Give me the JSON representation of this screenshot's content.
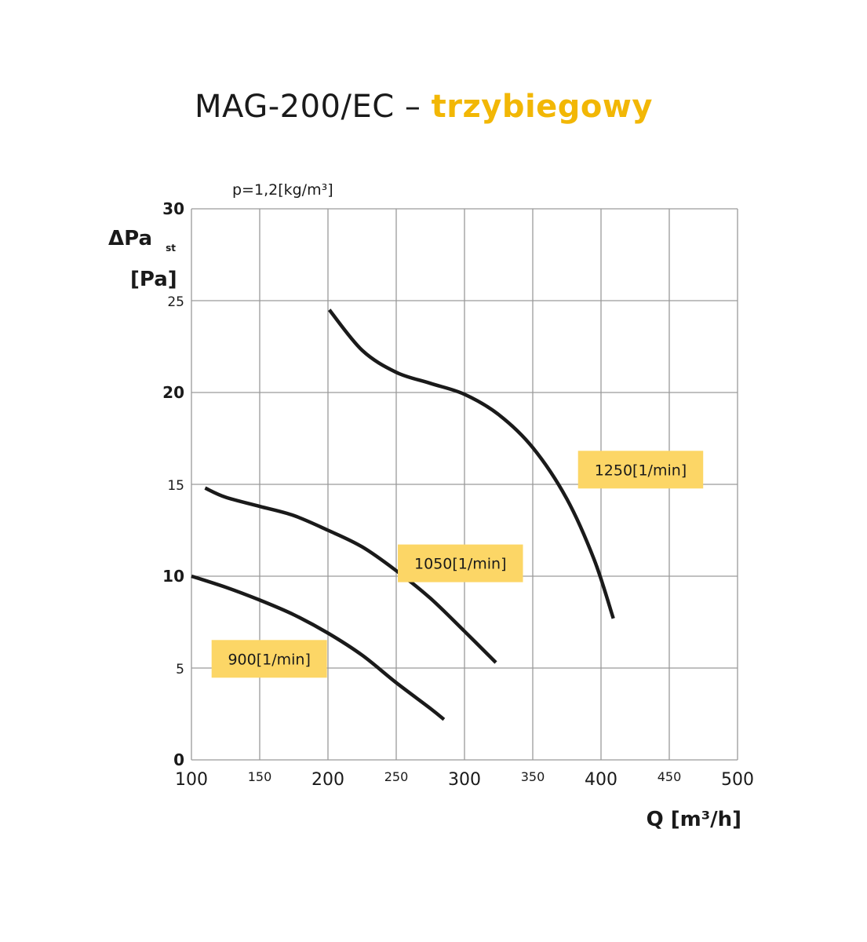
{
  "title": {
    "model": "MAG-200/EC",
    "separator": "–",
    "variant": "trzybiegowy"
  },
  "colors": {
    "accent": "#f2b705",
    "label_box": "#fcd666",
    "curve": "#1a1a1a",
    "grid": "#9a9a9a"
  },
  "chart_data": {
    "type": "line",
    "density_note": "p=1,2[kg/m³]",
    "ylabel": "ΔPa",
    "ylabel_sub": "st",
    "yunit": "[Pa]",
    "xlabel": "Q [m³/h]",
    "xlim": [
      100,
      500
    ],
    "ylim": [
      0,
      30
    ],
    "x_ticks": [
      {
        "value": 100,
        "label": "100",
        "major": true
      },
      {
        "value": 150,
        "label": "150",
        "major": false
      },
      {
        "value": 200,
        "label": "200",
        "major": true
      },
      {
        "value": 250,
        "label": "250",
        "major": false
      },
      {
        "value": 300,
        "label": "300",
        "major": true
      },
      {
        "value": 350,
        "label": "350",
        "major": false
      },
      {
        "value": 400,
        "label": "400",
        "major": true
      },
      {
        "value": 450,
        "label": "450",
        "major": false
      },
      {
        "value": 500,
        "label": "500",
        "major": true
      }
    ],
    "y_ticks": [
      {
        "value": 0,
        "label": "0",
        "major": true
      },
      {
        "value": 5,
        "label": "5",
        "major": false
      },
      {
        "value": 10,
        "label": "10",
        "major": true
      },
      {
        "value": 15,
        "label": "15",
        "major": false
      },
      {
        "value": 20,
        "label": "20",
        "major": true
      },
      {
        "value": 25,
        "label": "25",
        "major": false
      },
      {
        "value": 30,
        "label": "30",
        "major": true
      }
    ],
    "grid": true,
    "series": [
      {
        "name": "900[1/min]",
        "x": [
          100,
          125,
          150,
          175,
          200,
          225,
          250,
          275,
          285
        ],
        "y": [
          10,
          9.4,
          8.7,
          7.9,
          6.9,
          5.7,
          4.2,
          2.8,
          2.2
        ]
      },
      {
        "name": "1050[1/min]",
        "x": [
          110,
          125,
          150,
          175,
          200,
          225,
          250,
          275,
          300,
          323
        ],
        "y": [
          14.8,
          14.3,
          13.8,
          13.3,
          12.5,
          11.6,
          10.3,
          8.8,
          7.0,
          5.3
        ]
      },
      {
        "name": "1250[1/min]",
        "x": [
          201,
          225,
          250,
          275,
          300,
          325,
          350,
          375,
          395,
          409
        ],
        "y": [
          24.5,
          22.3,
          21.1,
          20.5,
          19.9,
          18.8,
          17.0,
          14.2,
          10.9,
          7.7
        ]
      }
    ],
    "series_labels": [
      {
        "name": "900[1/min]",
        "x": 157,
        "y": 5.5
      },
      {
        "name": "1050[1/min]",
        "x": 297,
        "y": 10.7
      },
      {
        "name": "1250[1/min]",
        "x": 429,
        "y": 15.8
      }
    ]
  }
}
